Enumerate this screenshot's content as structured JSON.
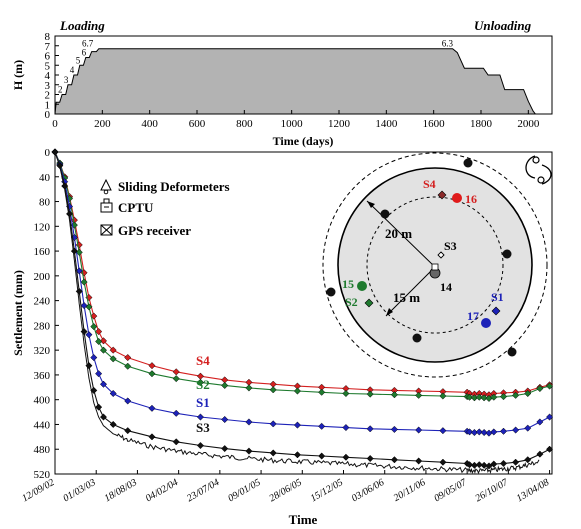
{
  "chart_data": [
    {
      "type": "area",
      "title_left": "Loading",
      "title_right": "Unloading",
      "xlabel": "Time (days)",
      "ylabel": "H (m)",
      "xlim": [
        0,
        2100
      ],
      "ylim": [
        0,
        8
      ],
      "xticks": [
        0,
        200,
        400,
        600,
        800,
        1000,
        1200,
        1400,
        1600,
        1800,
        2000
      ],
      "yticks": [
        0,
        1,
        2,
        3,
        4,
        5,
        6,
        7,
        8
      ],
      "x": [
        0,
        5,
        20,
        30,
        45,
        55,
        70,
        80,
        95,
        105,
        120,
        130,
        145,
        155,
        175,
        185,
        1680,
        1700,
        1730,
        1810,
        1830,
        1880,
        1900,
        1980,
        2000,
        2020,
        2030
      ],
      "y": [
        0,
        1.2,
        1.2,
        2,
        2,
        3,
        3,
        4,
        4,
        5,
        5,
        5.8,
        5.8,
        6.4,
        6.4,
        6.7,
        6.7,
        6.3,
        4.7,
        4.7,
        4.0,
        4.0,
        2.5,
        2.5,
        1.3,
        0.3,
        0
      ],
      "annotations": [
        {
          "text": "2",
          "x": 40,
          "y": 2
        },
        {
          "text": "3",
          "x": 65,
          "y": 3
        },
        {
          "text": "4",
          "x": 90,
          "y": 4
        },
        {
          "text": "5",
          "x": 115,
          "y": 5
        },
        {
          "text": "6",
          "x": 140,
          "y": 5.8
        },
        {
          "text": "6.7",
          "x": 170,
          "y": 6.7
        },
        {
          "text": "6.3",
          "x": 1690,
          "y": 6.7
        }
      ]
    },
    {
      "type": "line",
      "xlabel": "Time",
      "ylabel": "Settlement (mm)",
      "ylim": [
        520,
        0
      ],
      "yticks": [
        0,
        40,
        80,
        120,
        160,
        200,
        240,
        280,
        320,
        360,
        400,
        440,
        480,
        520
      ],
      "xtick_labels": [
        "12/09/02",
        "01/03/03",
        "18/08/03",
        "04/02/04",
        "23/07/04",
        "09/01/05",
        "28/06/05",
        "15/12/05",
        "03/06/06",
        "20/11/06",
        "09/05/07",
        "26/10/07",
        "13/04/08"
      ],
      "xticks": [
        0,
        170,
        340,
        510,
        680,
        850,
        1020,
        1190,
        1360,
        1530,
        1700,
        1870,
        2040
      ],
      "xlim": [
        0,
        2050
      ],
      "legend": [
        "Sliding Deformeters",
        "CPTU",
        "GPS receiver"
      ],
      "series": [
        {
          "name": "S4",
          "color": "#d42020",
          "x": [
            0,
            20,
            40,
            60,
            80,
            100,
            120,
            140,
            160,
            180,
            200,
            240,
            300,
            400,
            500,
            600,
            700,
            800,
            900,
            1000,
            1100,
            1200,
            1300,
            1400,
            1500,
            1600,
            1700,
            1710,
            1730,
            1750,
            1770,
            1790,
            1810,
            1850,
            1900,
            1950,
            2000,
            2040
          ],
          "y": [
            0,
            18,
            40,
            72,
            110,
            150,
            195,
            235,
            265,
            290,
            305,
            320,
            332,
            345,
            355,
            362,
            368,
            372,
            375,
            378,
            380,
            382,
            384,
            385,
            386,
            387,
            388,
            390,
            391,
            390,
            391,
            392,
            390,
            389,
            388,
            386,
            380,
            376
          ]
        },
        {
          "name": "S2",
          "color": "#1e7a2e",
          "x": [
            0,
            20,
            40,
            60,
            80,
            100,
            120,
            140,
            160,
            180,
            200,
            240,
            300,
            400,
            500,
            600,
            700,
            800,
            900,
            1000,
            1100,
            1200,
            1300,
            1400,
            1500,
            1600,
            1700,
            1710,
            1730,
            1750,
            1770,
            1790,
            1810,
            1850,
            1900,
            1950,
            2000,
            2040
          ],
          "y": [
            0,
            18,
            42,
            75,
            118,
            162,
            210,
            250,
            282,
            306,
            320,
            334,
            346,
            358,
            366,
            372,
            377,
            381,
            384,
            386,
            388,
            390,
            391,
            392,
            393,
            394,
            395,
            396,
            397,
            396,
            397,
            398,
            396,
            395,
            393,
            390,
            382,
            378
          ]
        },
        {
          "name": "S1",
          "color": "#1d22b8",
          "x": [
            0,
            20,
            40,
            60,
            80,
            100,
            120,
            140,
            160,
            180,
            200,
            240,
            300,
            400,
            500,
            600,
            700,
            800,
            900,
            1000,
            1100,
            1200,
            1300,
            1400,
            1500,
            1600,
            1700,
            1710,
            1730,
            1750,
            1770,
            1790,
            1810,
            1850,
            1900,
            1950,
            2000,
            2040
          ],
          "y": [
            0,
            20,
            48,
            88,
            138,
            192,
            248,
            295,
            332,
            358,
            375,
            390,
            402,
            414,
            422,
            428,
            432,
            436,
            439,
            441,
            443,
            445,
            447,
            448,
            449,
            450,
            451,
            452,
            453,
            452,
            453,
            454,
            452,
            451,
            449,
            446,
            436,
            428
          ]
        },
        {
          "name": "S3",
          "color": "#111111",
          "x": [
            0,
            20,
            40,
            60,
            80,
            100,
            120,
            140,
            160,
            180,
            200,
            240,
            300,
            400,
            500,
            600,
            700,
            800,
            900,
            1000,
            1100,
            1200,
            1300,
            1400,
            1500,
            1600,
            1700,
            1710,
            1730,
            1750,
            1770,
            1790,
            1810,
            1850,
            1900,
            1950,
            2000,
            2040
          ],
          "y": [
            0,
            22,
            55,
            100,
            160,
            225,
            290,
            345,
            385,
            412,
            428,
            440,
            450,
            460,
            468,
            474,
            479,
            483,
            486,
            489,
            491,
            493,
            495,
            497,
            499,
            501,
            503,
            505,
            506,
            505,
            506,
            507,
            504,
            503,
            501,
            497,
            488,
            480
          ]
        },
        {
          "name": "",
          "color": "#111111",
          "noisy": true,
          "x": [
            0,
            20,
            40,
            60,
            80,
            100,
            120,
            140,
            160,
            180,
            200,
            240,
            300,
            400,
            500,
            600,
            700,
            800,
            900,
            1000,
            1100,
            1200,
            1300,
            1400,
            1500,
            1600,
            1700,
            1750,
            1800,
            1850,
            1900,
            1950,
            2000
          ],
          "y": [
            0,
            24,
            60,
            110,
            175,
            245,
            310,
            365,
            405,
            428,
            442,
            455,
            465,
            476,
            483,
            488,
            492,
            495,
            498,
            500,
            502,
            504,
            506,
            508,
            510,
            512,
            514,
            515,
            514,
            512,
            510,
            505,
            500
          ]
        }
      ],
      "labels": [
        {
          "text": "S4",
          "color": "#d42020",
          "x": 570,
          "y": 350
        },
        {
          "text": "S2",
          "color": "#1e7a2e",
          "x": 570,
          "y": 376
        },
        {
          "text": "S1",
          "color": "#1d22b8",
          "x": 570,
          "y": 402
        },
        {
          "text": "S3",
          "color": "#111111",
          "x": 570,
          "y": 447
        }
      ]
    },
    {
      "type": "diagram",
      "labels": {
        "s4": "S4",
        "p16": "16",
        "s3": "S3",
        "p14": "14",
        "p15": "15",
        "s2": "S2",
        "s1": "S1",
        "p17": "17",
        "r20": "20 m",
        "r15": "15 m"
      },
      "colors": {
        "red": "#e01b1b",
        "green": "#1e7a2e",
        "blue": "#1d22b8",
        "brown": "#8b2a2a"
      }
    }
  ]
}
